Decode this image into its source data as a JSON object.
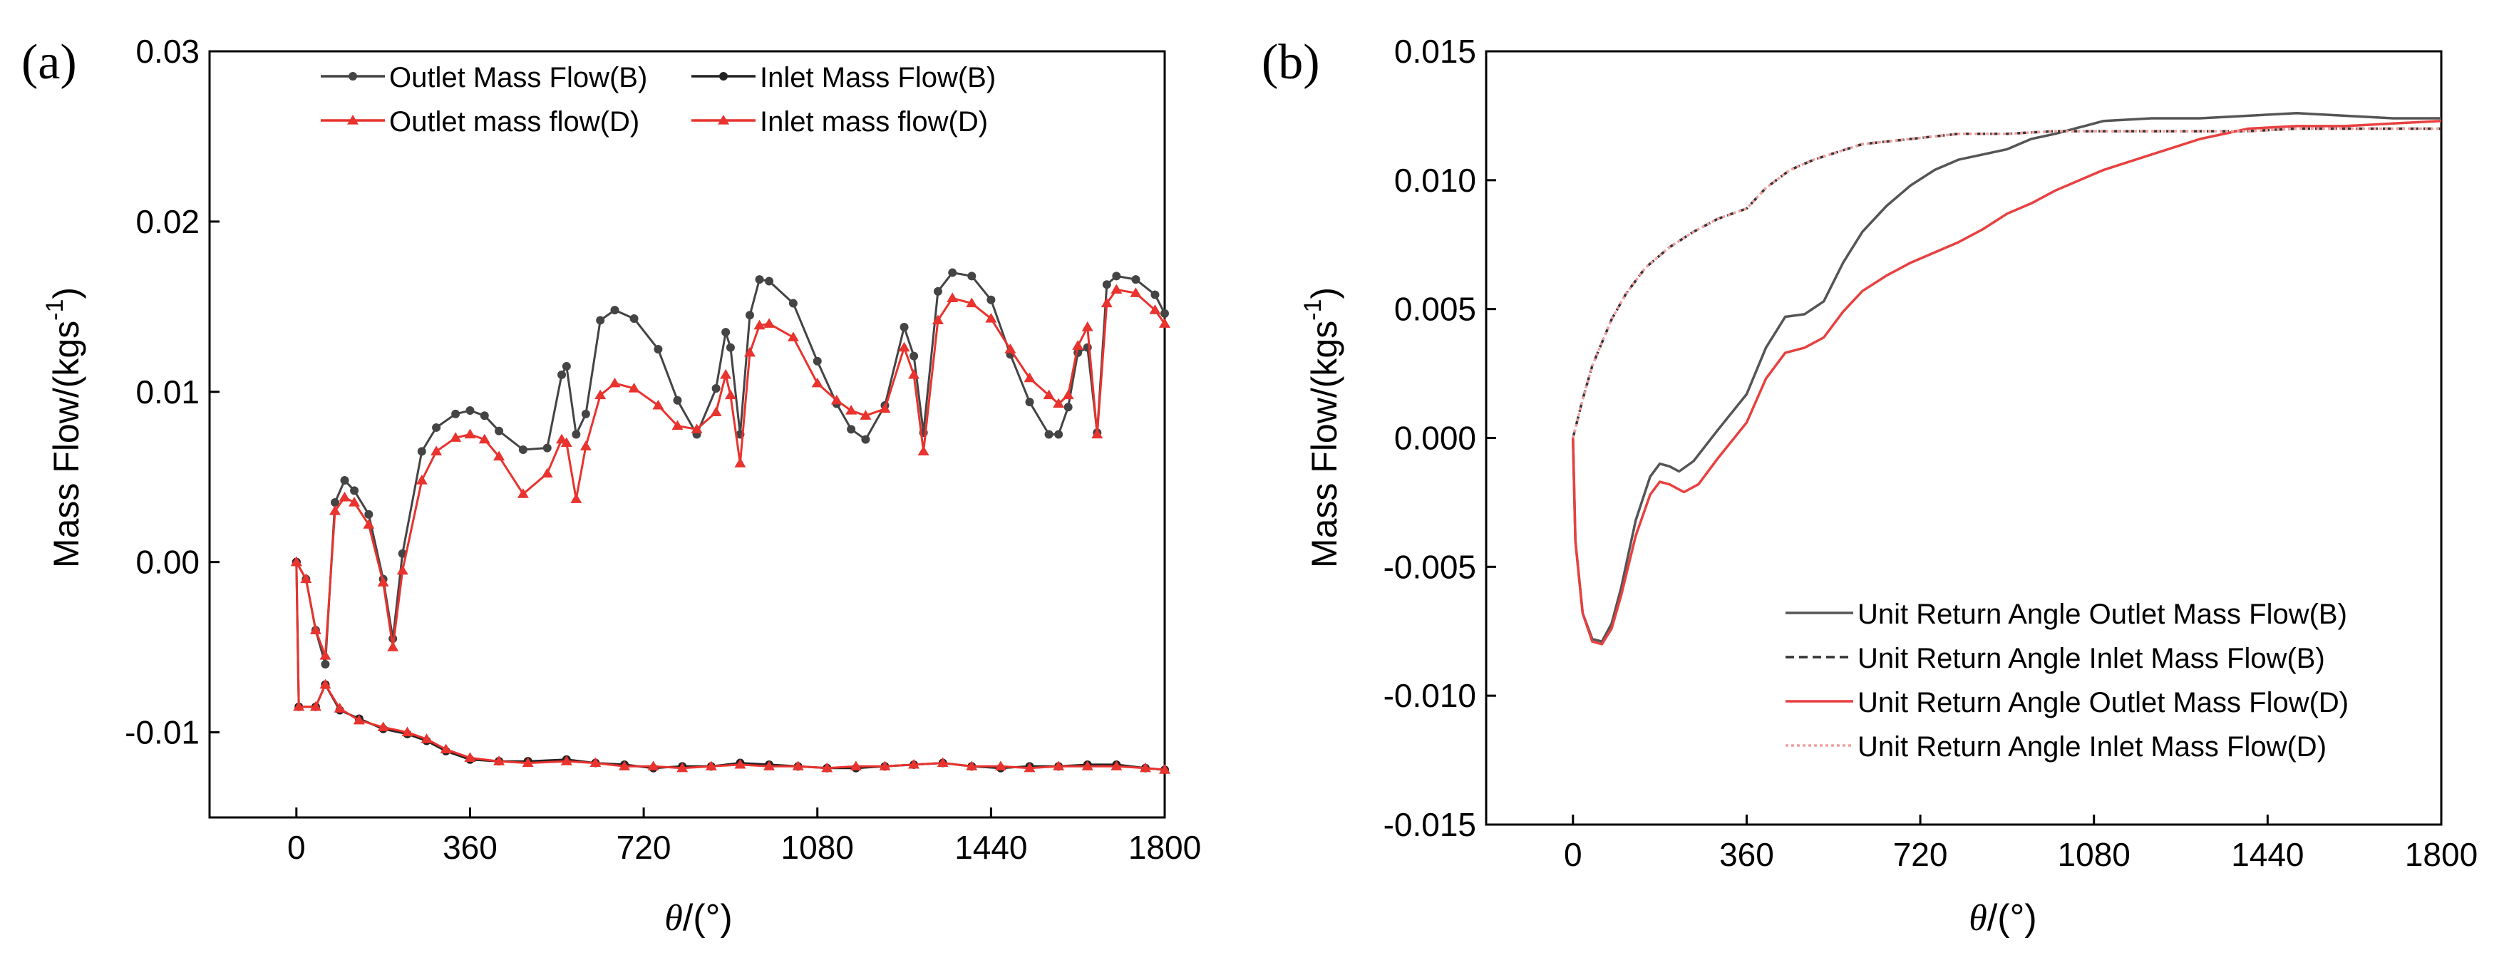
{
  "panels": [
    {
      "panel_label": "(a)",
      "ylabel": "Mass Flow/(kgs",
      "ylabel_sup": "-1",
      "ylabel_close": ")",
      "xlabel_symbol": "θ",
      "xlabel_unit": "/(°)"
    },
    {
      "panel_label": "(b)",
      "ylabel": "Mass Flow/(kgs",
      "ylabel_sup": "-1",
      "ylabel_close": ")",
      "xlabel_symbol": "θ",
      "xlabel_unit": "/(°)"
    }
  ],
  "chart_data": [
    {
      "type": "line",
      "title": "",
      "xlim": [
        -180,
        1800
      ],
      "ylim": [
        -0.015,
        0.03
      ],
      "xticks": [
        0,
        360,
        720,
        1080,
        1440,
        1800
      ],
      "xtick_labels": [
        "0",
        "360",
        "720",
        "1080",
        "1440",
        "1800"
      ],
      "yticks": [
        -0.01,
        0.0,
        0.01,
        0.02,
        0.03
      ],
      "ytick_labels": [
        "-0.01",
        "0.00",
        "0.01",
        "0.02",
        "0.03"
      ],
      "grid": false,
      "legend_position": "top",
      "series": [
        {
          "name": "Outlet Mass Flow(B)",
          "color": "#444444",
          "marker": "circle",
          "x": [
            0,
            20,
            40,
            60,
            80,
            100,
            120,
            150,
            180,
            200,
            220,
            260,
            290,
            330,
            360,
            390,
            420,
            470,
            520,
            550,
            560,
            580,
            600,
            630,
            660,
            700,
            750,
            790,
            830,
            870,
            890,
            900,
            920,
            940,
            960,
            980,
            1030,
            1080,
            1120,
            1150,
            1180,
            1220,
            1260,
            1280,
            1300,
            1330,
            1360,
            1400,
            1440,
            1480,
            1520,
            1560,
            1580,
            1600,
            1620,
            1640,
            1660,
            1680,
            1700,
            1740,
            1780,
            1800
          ],
          "y": [
            0.0,
            -0.001,
            -0.004,
            -0.006,
            0.0035,
            0.0048,
            0.0042,
            0.0028,
            -0.001,
            -0.0045,
            0.0005,
            0.0065,
            0.0079,
            0.0087,
            0.0089,
            0.0086,
            0.0077,
            0.0066,
            0.0067,
            0.011,
            0.0115,
            0.0075,
            0.0087,
            0.0142,
            0.0148,
            0.0143,
            0.0125,
            0.0095,
            0.0075,
            0.0102,
            0.0135,
            0.0126,
            0.0075,
            0.0145,
            0.0166,
            0.0165,
            0.0152,
            0.0118,
            0.0093,
            0.0078,
            0.0072,
            0.0092,
            0.0138,
            0.0121,
            0.0076,
            0.0159,
            0.017,
            0.0168,
            0.0154,
            0.0122,
            0.0094,
            0.0075,
            0.0075,
            0.0091,
            0.0123,
            0.0126,
            0.0076,
            0.0163,
            0.0168,
            0.0166,
            0.0157,
            0.0146
          ]
        },
        {
          "name": "Inlet Mass Flow(B)",
          "color": "#222222",
          "marker": "circle",
          "x": [
            0,
            5,
            40,
            60,
            90,
            130,
            180,
            230,
            270,
            310,
            360,
            420,
            480,
            560,
            620,
            680,
            740,
            800,
            860,
            920,
            980,
            1040,
            1100,
            1160,
            1220,
            1280,
            1340,
            1400,
            1460,
            1520,
            1580,
            1640,
            1700,
            1760,
            1800
          ],
          "y": [
            0.0,
            -0.0085,
            -0.0085,
            -0.0072,
            -0.0087,
            -0.0092,
            -0.0098,
            -0.0101,
            -0.0105,
            -0.0111,
            -0.0116,
            -0.0117,
            -0.0117,
            -0.0116,
            -0.0118,
            -0.0119,
            -0.0121,
            -0.012,
            -0.012,
            -0.0118,
            -0.0119,
            -0.012,
            -0.0121,
            -0.0121,
            -0.012,
            -0.0119,
            -0.0118,
            -0.012,
            -0.0121,
            -0.012,
            -0.012,
            -0.0119,
            -0.0119,
            -0.0121,
            -0.0122
          ]
        },
        {
          "name": "Outlet mass flow(D)",
          "color": "#e8332e",
          "marker": "triangle",
          "x": [
            0,
            20,
            40,
            60,
            80,
            100,
            120,
            150,
            180,
            200,
            220,
            260,
            290,
            330,
            360,
            390,
            420,
            470,
            520,
            550,
            560,
            580,
            600,
            630,
            660,
            700,
            750,
            790,
            830,
            870,
            890,
            900,
            920,
            940,
            960,
            980,
            1030,
            1080,
            1120,
            1150,
            1180,
            1220,
            1260,
            1280,
            1300,
            1330,
            1360,
            1400,
            1440,
            1480,
            1520,
            1560,
            1580,
            1600,
            1620,
            1640,
            1660,
            1680,
            1700,
            1740,
            1780,
            1800
          ],
          "y": [
            0.0,
            -0.001,
            -0.004,
            -0.0055,
            0.003,
            0.0038,
            0.0035,
            0.0022,
            -0.0012,
            -0.005,
            -0.0005,
            0.0048,
            0.0065,
            0.0073,
            0.0075,
            0.0072,
            0.0062,
            0.004,
            0.0052,
            0.0072,
            0.007,
            0.0037,
            0.0068,
            0.0098,
            0.0105,
            0.0102,
            0.0092,
            0.008,
            0.0078,
            0.0088,
            0.011,
            0.0098,
            0.0058,
            0.0123,
            0.0139,
            0.014,
            0.0132,
            0.0105,
            0.0095,
            0.0089,
            0.0086,
            0.009,
            0.0126,
            0.011,
            0.0065,
            0.0142,
            0.0155,
            0.0152,
            0.0143,
            0.0125,
            0.0108,
            0.0098,
            0.0093,
            0.0098,
            0.0127,
            0.0138,
            0.0075,
            0.0152,
            0.016,
            0.0158,
            0.0148,
            0.014
          ]
        },
        {
          "name": "Inlet mass flow(D)",
          "color": "#e8332e",
          "marker": "triangle",
          "x": [
            0,
            5,
            40,
            60,
            90,
            130,
            180,
            230,
            270,
            310,
            360,
            420,
            480,
            560,
            620,
            680,
            740,
            800,
            860,
            920,
            980,
            1040,
            1100,
            1160,
            1220,
            1280,
            1340,
            1400,
            1460,
            1520,
            1580,
            1640,
            1700,
            1760,
            1800
          ],
          "y": [
            0.0,
            -0.0085,
            -0.0085,
            -0.0072,
            -0.0086,
            -0.0093,
            -0.0097,
            -0.01,
            -0.0104,
            -0.011,
            -0.0115,
            -0.0117,
            -0.0118,
            -0.0117,
            -0.0118,
            -0.012,
            -0.012,
            -0.0121,
            -0.012,
            -0.0119,
            -0.012,
            -0.012,
            -0.0121,
            -0.012,
            -0.012,
            -0.0119,
            -0.0118,
            -0.012,
            -0.012,
            -0.0121,
            -0.012,
            -0.012,
            -0.012,
            -0.0121,
            -0.0122
          ]
        }
      ]
    },
    {
      "type": "line",
      "title": "",
      "xlim": [
        -180,
        1800
      ],
      "ylim": [
        -0.015,
        0.015
      ],
      "xticks": [
        0,
        360,
        720,
        1080,
        1440,
        1800
      ],
      "xtick_labels": [
        "0",
        "360",
        "720",
        "1080",
        "1440",
        "1800"
      ],
      "yticks": [
        -0.015,
        -0.01,
        -0.005,
        0.0,
        0.005,
        0.01,
        0.015
      ],
      "ytick_labels": [
        "-0.015",
        "-0.010",
        "-0.005",
        "0.000",
        "0.005",
        "0.010",
        "0.015"
      ],
      "grid": false,
      "legend_position": "bottom-right",
      "series": [
        {
          "name": "Unit Return Angle Outlet Mass Flow(B)",
          "color": "#555555",
          "dash": "solid",
          "x": [
            0,
            5,
            20,
            40,
            60,
            80,
            100,
            130,
            160,
            180,
            200,
            220,
            250,
            300,
            360,
            400,
            440,
            480,
            520,
            560,
            600,
            650,
            700,
            750,
            800,
            850,
            900,
            950,
            1000,
            1100,
            1200,
            1300,
            1400,
            1500,
            1600,
            1700,
            1800
          ],
          "y": [
            0.0,
            -0.004,
            -0.0068,
            -0.0078,
            -0.0079,
            -0.0072,
            -0.0058,
            -0.0032,
            -0.0015,
            -0.001,
            -0.0011,
            -0.0013,
            -0.0009,
            0.0003,
            0.0017,
            0.0035,
            0.0047,
            0.0048,
            0.0053,
            0.0068,
            0.008,
            0.009,
            0.0098,
            0.0104,
            0.0108,
            0.011,
            0.0112,
            0.0116,
            0.0118,
            0.0123,
            0.0124,
            0.0124,
            0.0125,
            0.0126,
            0.0125,
            0.0124,
            0.0124
          ]
        },
        {
          "name": "Unit Return Angle Inlet Mass Flow(B)",
          "color": "#333333",
          "dash": "dashed",
          "x": [
            0,
            20,
            40,
            60,
            80,
            110,
            150,
            200,
            250,
            300,
            360,
            400,
            450,
            500,
            550,
            600,
            700,
            800,
            900,
            1000,
            1100,
            1200,
            1300,
            1400,
            1500,
            1600,
            1700,
            1800
          ],
          "y": [
            0.0,
            0.0015,
            0.0028,
            0.0037,
            0.0046,
            0.0056,
            0.0066,
            0.0074,
            0.008,
            0.0085,
            0.0089,
            0.0097,
            0.0104,
            0.0108,
            0.0111,
            0.0114,
            0.0116,
            0.0118,
            0.0118,
            0.0119,
            0.0119,
            0.0119,
            0.0119,
            0.0119,
            0.012,
            0.012,
            0.012,
            0.012
          ]
        },
        {
          "name": "Unit Return Angle Outlet Mass Flow(D)",
          "color": "#e84040",
          "dash": "solid",
          "x": [
            0,
            5,
            20,
            40,
            60,
            80,
            100,
            130,
            160,
            180,
            200,
            230,
            260,
            300,
            360,
            400,
            440,
            480,
            520,
            560,
            600,
            650,
            700,
            750,
            800,
            850,
            900,
            950,
            1000,
            1100,
            1200,
            1300,
            1400,
            1500,
            1600,
            1700,
            1800
          ],
          "y": [
            0.0,
            -0.004,
            -0.0068,
            -0.0079,
            -0.008,
            -0.0074,
            -0.0061,
            -0.0038,
            -0.0022,
            -0.0017,
            -0.0018,
            -0.0021,
            -0.0018,
            -0.0008,
            0.0006,
            0.0023,
            0.0033,
            0.0035,
            0.0039,
            0.0049,
            0.0057,
            0.0063,
            0.0068,
            0.0072,
            0.0076,
            0.0081,
            0.0087,
            0.0091,
            0.0096,
            0.0104,
            0.011,
            0.0116,
            0.012,
            0.0121,
            0.0121,
            0.0122,
            0.0123
          ]
        },
        {
          "name": "Unit Return Angle Inlet Mass Flow(D)",
          "color": "#f0a0a0",
          "dash": "dotted",
          "x": [
            0,
            20,
            40,
            60,
            80,
            110,
            150,
            200,
            250,
            300,
            360,
            400,
            450,
            500,
            550,
            600,
            700,
            800,
            900,
            1000,
            1100,
            1200,
            1300,
            1400,
            1500,
            1600,
            1700,
            1800
          ],
          "y": [
            0.0,
            0.0015,
            0.0028,
            0.0037,
            0.0046,
            0.0056,
            0.0066,
            0.0074,
            0.008,
            0.0085,
            0.0089,
            0.0097,
            0.0104,
            0.0108,
            0.0111,
            0.0114,
            0.0116,
            0.0118,
            0.0118,
            0.0119,
            0.0119,
            0.0119,
            0.0119,
            0.0119,
            0.012,
            0.012,
            0.012,
            0.012
          ]
        }
      ]
    }
  ]
}
